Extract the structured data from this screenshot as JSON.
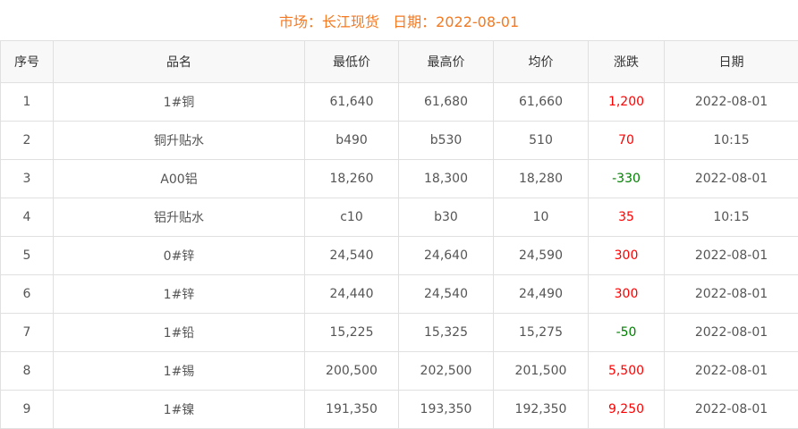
{
  "title": {
    "market_label": "市场：",
    "market": "长江现货",
    "date_label": "日期：",
    "date": "2022-08-01"
  },
  "colors": {
    "title": "#f47920",
    "up": "#ff0000",
    "down": "#008000"
  },
  "headers": [
    "序号",
    "品名",
    "最低价",
    "最高价",
    "均价",
    "涨跌",
    "日期"
  ],
  "rows": [
    {
      "no": "1",
      "name": "1#铜",
      "low": "61,640",
      "high": "61,680",
      "avg": "61,660",
      "change": "1,200",
      "dir": "up",
      "date": "2022-08-01"
    },
    {
      "no": "2",
      "name": "铜升贴水",
      "low": "b490",
      "high": "b530",
      "avg": "510",
      "change": "70",
      "dir": "up",
      "date": "10:15"
    },
    {
      "no": "3",
      "name": "A00铝",
      "low": "18,260",
      "high": "18,300",
      "avg": "18,280",
      "change": "-330",
      "dir": "down",
      "date": "2022-08-01"
    },
    {
      "no": "4",
      "name": "铝升贴水",
      "low": "c10",
      "high": "b30",
      "avg": "10",
      "change": "35",
      "dir": "up",
      "date": "10:15"
    },
    {
      "no": "5",
      "name": "0#锌",
      "low": "24,540",
      "high": "24,640",
      "avg": "24,590",
      "change": "300",
      "dir": "up",
      "date": "2022-08-01"
    },
    {
      "no": "6",
      "name": "1#锌",
      "low": "24,440",
      "high": "24,540",
      "avg": "24,490",
      "change": "300",
      "dir": "up",
      "date": "2022-08-01"
    },
    {
      "no": "7",
      "name": "1#铅",
      "low": "15,225",
      "high": "15,325",
      "avg": "15,275",
      "change": "-50",
      "dir": "down",
      "date": "2022-08-01"
    },
    {
      "no": "8",
      "name": "1#锡",
      "low": "200,500",
      "high": "202,500",
      "avg": "201,500",
      "change": "5,500",
      "dir": "up",
      "date": "2022-08-01"
    },
    {
      "no": "9",
      "name": "1#镍",
      "low": "191,350",
      "high": "193,350",
      "avg": "192,350",
      "change": "9,250",
      "dir": "up",
      "date": "2022-08-01"
    }
  ]
}
